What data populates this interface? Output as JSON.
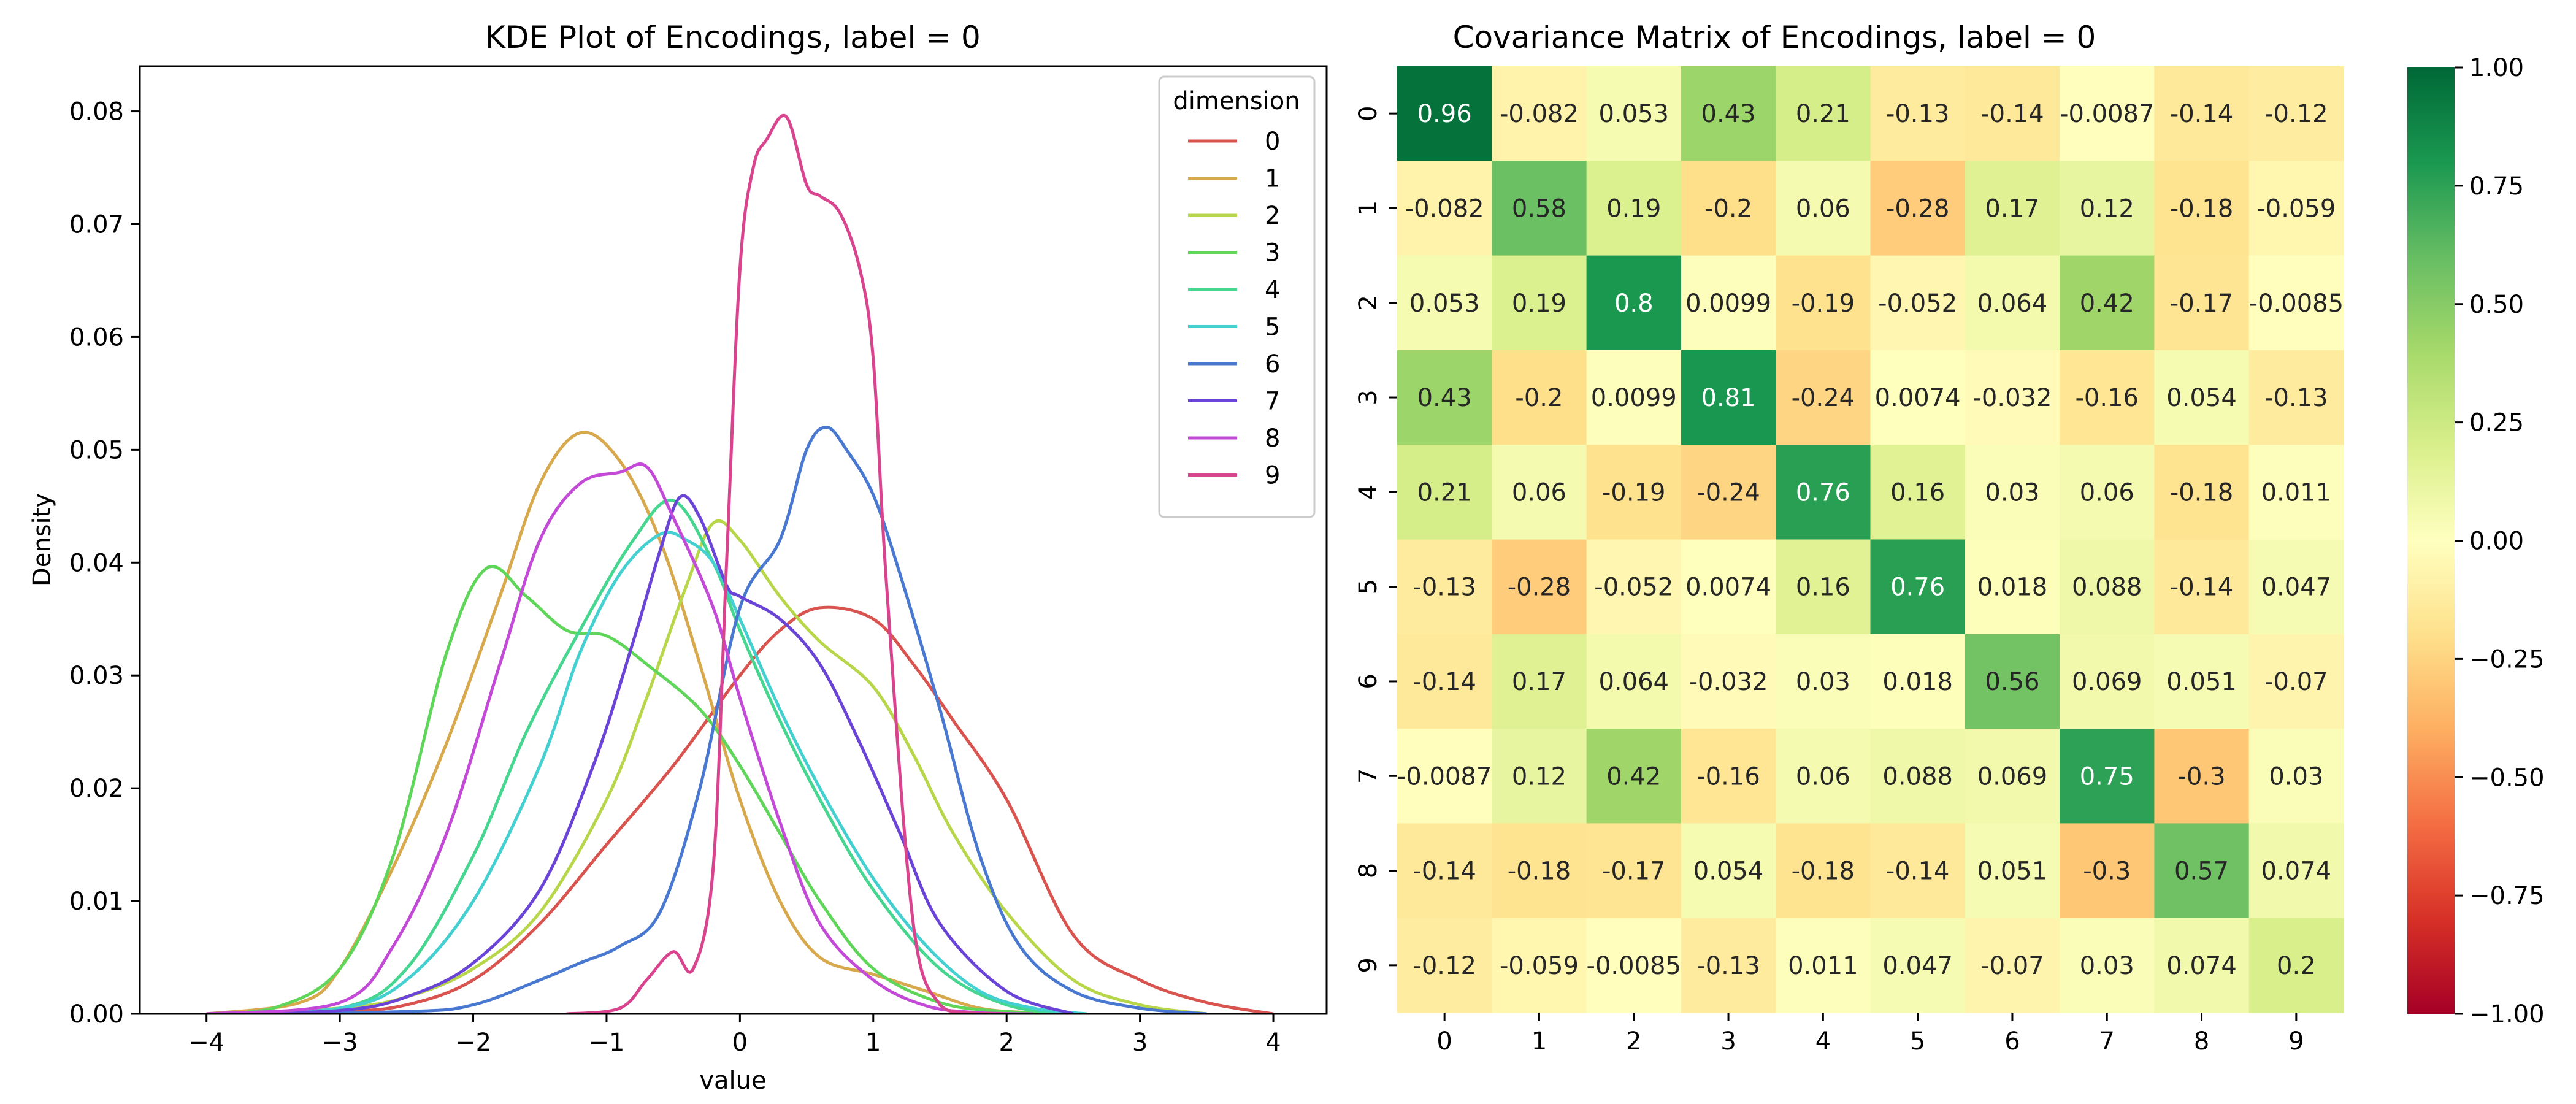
{
  "chart_data": [
    {
      "type": "line",
      "title": "KDE Plot of Encodings, label = 0",
      "xlabel": "value",
      "ylabel": "Density",
      "xlim": [
        -4.5,
        4.4
      ],
      "ylim": [
        0,
        0.084
      ],
      "xticks": [
        -4,
        -3,
        -2,
        -1,
        0,
        1,
        2,
        3,
        4
      ],
      "xtick_labels": [
        "−4",
        "−3",
        "−2",
        "−1",
        "0",
        "1",
        "2",
        "3",
        "4"
      ],
      "yticks": [
        0.0,
        0.01,
        0.02,
        0.03,
        0.04,
        0.05,
        0.06,
        0.07,
        0.08
      ],
      "ytick_labels": [
        "0.00",
        "0.01",
        "0.02",
        "0.03",
        "0.04",
        "0.05",
        "0.06",
        "0.07",
        "0.08"
      ],
      "grid": false,
      "legend": {
        "title": "dimension",
        "placement": "top-right"
      },
      "series": [
        {
          "name": "0",
          "color": "#d9534f",
          "x": [
            -4,
            -3,
            -2.5,
            -2,
            -1.5,
            -1,
            -0.5,
            0,
            0.3,
            0.6,
            1,
            1.3,
            1.6,
            2,
            2.5,
            3,
            3.5,
            4
          ],
          "y": [
            0,
            0.0002,
            0.0008,
            0.003,
            0.008,
            0.015,
            0.022,
            0.03,
            0.034,
            0.036,
            0.035,
            0.031,
            0.026,
            0.019,
            0.007,
            0.003,
            0.001,
            0
          ]
        },
        {
          "name": "1",
          "color": "#d8a84c",
          "x": [
            -4,
            -3.3,
            -3,
            -2.6,
            -2.2,
            -1.8,
            -1.5,
            -1.2,
            -0.9,
            -0.6,
            -0.3,
            0,
            0.3,
            0.6,
            1,
            1.4,
            1.8,
            2.2,
            2.6
          ],
          "y": [
            0,
            0.001,
            0.004,
            0.013,
            0.024,
            0.037,
            0.047,
            0.0515,
            0.049,
            0.042,
            0.031,
            0.019,
            0.01,
            0.005,
            0.0035,
            0.002,
            0.0005,
            0.0001,
            0
          ]
        },
        {
          "name": "2",
          "color": "#b8d64a",
          "x": [
            -4,
            -3,
            -2.5,
            -2,
            -1.5,
            -1,
            -0.7,
            -0.4,
            -0.2,
            0,
            0.3,
            0.6,
            1,
            1.3,
            1.6,
            2,
            2.5,
            3,
            3.5
          ],
          "y": [
            0,
            0.0005,
            0.0015,
            0.004,
            0.009,
            0.019,
            0.028,
            0.038,
            0.0435,
            0.042,
            0.037,
            0.033,
            0.029,
            0.023,
            0.016,
            0.009,
            0.003,
            0.0008,
            0
          ]
        },
        {
          "name": "3",
          "color": "#5fd65a",
          "x": [
            -4,
            -3.5,
            -3,
            -2.6,
            -2.2,
            -1.9,
            -1.6,
            -1.3,
            -1,
            -0.7,
            -0.3,
            0,
            0.3,
            0.6,
            1,
            1.5,
            2,
            2.5
          ],
          "y": [
            0,
            0.0005,
            0.004,
            0.014,
            0.032,
            0.0395,
            0.037,
            0.034,
            0.0335,
            0.031,
            0.027,
            0.022,
            0.016,
            0.01,
            0.004,
            0.001,
            0.0002,
            0
          ]
        },
        {
          "name": "4",
          "color": "#46d68f",
          "x": [
            -4,
            -3,
            -2.5,
            -2,
            -1.6,
            -1.2,
            -0.8,
            -0.5,
            -0.2,
            0,
            0.3,
            0.6,
            1,
            1.5,
            2,
            2.5
          ],
          "y": [
            0,
            0.0005,
            0.004,
            0.014,
            0.025,
            0.034,
            0.042,
            0.0455,
            0.04,
            0.034,
            0.026,
            0.019,
            0.011,
            0.004,
            0.0008,
            0
          ]
        },
        {
          "name": "5",
          "color": "#44d0d0",
          "x": [
            -4,
            -3,
            -2.5,
            -2,
            -1.5,
            -1.2,
            -0.9,
            -0.6,
            -0.4,
            -0.2,
            0,
            0.3,
            0.6,
            1,
            1.4,
            1.8,
            2.2,
            2.6
          ],
          "y": [
            0,
            0.0005,
            0.003,
            0.01,
            0.022,
            0.032,
            0.039,
            0.0425,
            0.042,
            0.04,
            0.035,
            0.027,
            0.02,
            0.012,
            0.006,
            0.002,
            0.0005,
            0
          ]
        },
        {
          "name": "6",
          "color": "#4878d0",
          "x": [
            -4,
            -2.5,
            -2,
            -1.5,
            -1.2,
            -0.9,
            -0.6,
            -0.3,
            0,
            0.3,
            0.5,
            0.65,
            0.8,
            1,
            1.2,
            1.5,
            1.8,
            2.1,
            2.5,
            3,
            3.5
          ],
          "y": [
            0,
            0.0002,
            0.0008,
            0.003,
            0.0045,
            0.006,
            0.009,
            0.02,
            0.036,
            0.042,
            0.05,
            0.052,
            0.05,
            0.046,
            0.039,
            0.027,
            0.014,
            0.006,
            0.002,
            0.0005,
            0
          ]
        },
        {
          "name": "7",
          "color": "#6a44d6",
          "x": [
            -4,
            -3,
            -2.5,
            -2,
            -1.5,
            -1.1,
            -0.8,
            -0.6,
            -0.45,
            -0.3,
            -0.1,
            0,
            0.3,
            0.6,
            0.9,
            1.2,
            1.5,
            2,
            2.5
          ],
          "y": [
            0,
            0.0003,
            0.0015,
            0.0045,
            0.011,
            0.022,
            0.033,
            0.041,
            0.0458,
            0.044,
            0.038,
            0.037,
            0.035,
            0.031,
            0.024,
            0.016,
            0.008,
            0.002,
            0
          ]
        },
        {
          "name": "8",
          "color": "#c24ad6",
          "x": [
            -4,
            -3,
            -2.6,
            -2.2,
            -1.8,
            -1.5,
            -1.2,
            -0.9,
            -0.7,
            -0.5,
            -0.2,
            0,
            0.3,
            0.6,
            1,
            1.4,
            1.8,
            2.2
          ],
          "y": [
            0,
            0.001,
            0.006,
            0.016,
            0.031,
            0.042,
            0.047,
            0.048,
            0.0485,
            0.044,
            0.036,
            0.028,
            0.017,
            0.008,
            0.003,
            0.0007,
            0.0001,
            0
          ]
        },
        {
          "name": "9",
          "color": "#d9448f",
          "x": [
            -1.3,
            -0.9,
            -0.7,
            -0.5,
            -0.35,
            -0.2,
            -0.1,
            0,
            0.1,
            0.2,
            0.35,
            0.5,
            0.6,
            0.75,
            0.9,
            1,
            1.1,
            1.3,
            1.5,
            1.7,
            2
          ],
          "y": [
            0,
            0.0005,
            0.003,
            0.0055,
            0.004,
            0.013,
            0.04,
            0.066,
            0.075,
            0.0775,
            0.0795,
            0.0735,
            0.0725,
            0.071,
            0.066,
            0.058,
            0.038,
            0.008,
            0.0008,
            0.0001,
            0
          ]
        }
      ]
    },
    {
      "type": "heatmap",
      "title": "Covariance Matrix of Encodings, label = 0",
      "x_categories": [
        "0",
        "1",
        "2",
        "3",
        "4",
        "5",
        "6",
        "7",
        "8",
        "9"
      ],
      "y_categories": [
        "0",
        "1",
        "2",
        "3",
        "4",
        "5",
        "6",
        "7",
        "8",
        "9"
      ],
      "values": [
        [
          0.96,
          -0.082,
          0.053,
          0.43,
          0.21,
          -0.13,
          -0.14,
          -0.0087,
          -0.14,
          -0.12
        ],
        [
          -0.082,
          0.58,
          0.19,
          -0.2,
          0.06,
          -0.28,
          0.17,
          0.12,
          -0.18,
          -0.059
        ],
        [
          0.053,
          0.19,
          0.8,
          0.0099,
          -0.19,
          -0.052,
          0.064,
          0.42,
          -0.17,
          -0.0085
        ],
        [
          0.43,
          -0.2,
          0.0099,
          0.81,
          -0.24,
          0.0074,
          -0.032,
          -0.16,
          0.054,
          -0.13
        ],
        [
          0.21,
          0.06,
          -0.19,
          -0.24,
          0.76,
          0.16,
          0.03,
          0.06,
          -0.18,
          0.011
        ],
        [
          -0.13,
          -0.28,
          -0.052,
          0.0074,
          0.16,
          0.76,
          0.018,
          0.088,
          -0.14,
          0.047
        ],
        [
          -0.14,
          0.17,
          0.064,
          -0.032,
          0.03,
          0.018,
          0.56,
          0.069,
          0.051,
          -0.07
        ],
        [
          -0.0087,
          0.12,
          0.42,
          -0.16,
          0.06,
          0.088,
          0.069,
          0.75,
          -0.3,
          0.03
        ],
        [
          -0.14,
          -0.18,
          -0.17,
          0.054,
          -0.18,
          -0.14,
          0.051,
          -0.3,
          0.57,
          0.074
        ],
        [
          -0.12,
          -0.059,
          -0.0085,
          -0.13,
          0.011,
          0.047,
          -0.07,
          0.03,
          0.074,
          0.2
        ]
      ],
      "labels": [
        [
          "0.96",
          "-0.082",
          "0.053",
          "0.43",
          "0.21",
          "-0.13",
          "-0.14",
          "-0.0087",
          "-0.14",
          "-0.12"
        ],
        [
          "-0.082",
          "0.58",
          "0.19",
          "-0.2",
          "0.06",
          "-0.28",
          "0.17",
          "0.12",
          "-0.18",
          "-0.059"
        ],
        [
          "0.053",
          "0.19",
          "0.8",
          "0.0099",
          "-0.19",
          "-0.052",
          "0.064",
          "0.42",
          "-0.17",
          "-0.0085"
        ],
        [
          "0.43",
          "-0.2",
          "0.0099",
          "0.81",
          "-0.24",
          "0.0074",
          "-0.032",
          "-0.16",
          "0.054",
          "-0.13"
        ],
        [
          "0.21",
          "0.06",
          "-0.19",
          "-0.24",
          "0.76",
          "0.16",
          "0.03",
          "0.06",
          "-0.18",
          "0.011"
        ],
        [
          "-0.13",
          "-0.28",
          "-0.052",
          "0.0074",
          "0.16",
          "0.76",
          "0.018",
          "0.088",
          "-0.14",
          "0.047"
        ],
        [
          "-0.14",
          "0.17",
          "0.064",
          "-0.032",
          "0.03",
          "0.018",
          "0.56",
          "0.069",
          "0.051",
          "-0.07"
        ],
        [
          "-0.0087",
          "0.12",
          "0.42",
          "-0.16",
          "0.06",
          "0.088",
          "0.069",
          "0.75",
          "-0.3",
          "0.03"
        ],
        [
          "-0.14",
          "-0.18",
          "-0.17",
          "0.054",
          "-0.18",
          "-0.14",
          "0.051",
          "-0.3",
          "0.57",
          "0.074"
        ],
        [
          "-0.12",
          "-0.059",
          "-0.0085",
          "-0.13",
          "0.011",
          "0.047",
          "-0.07",
          "0.03",
          "0.074",
          "0.2"
        ]
      ],
      "colormap": "RdYlGn",
      "vmin": -1,
      "vmax": 1,
      "colorbar_ticks": [
        1.0,
        0.75,
        0.5,
        0.25,
        0.0,
        -0.25,
        -0.5,
        -0.75,
        -1.0
      ],
      "colorbar_tick_labels": [
        "1.00",
        "0.75",
        "0.50",
        "0.25",
        "0.00",
        "−0.25",
        "−0.50",
        "−0.75",
        "−1.00"
      ]
    }
  ]
}
